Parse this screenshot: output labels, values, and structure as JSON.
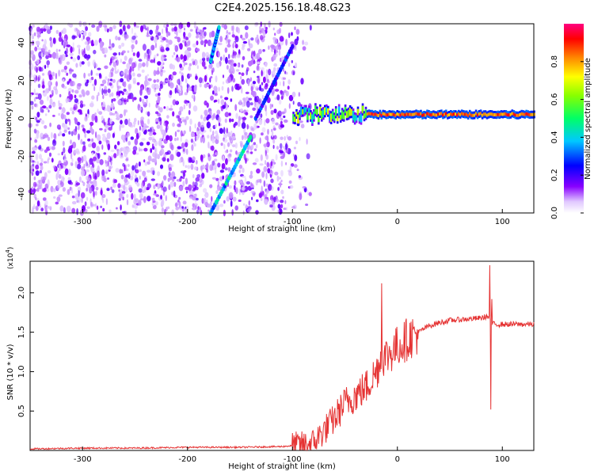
{
  "title": "C2E4.2025.156.18.48.G23",
  "chart_data": [
    {
      "type": "heatmap",
      "title": "C2E4.2025.156.18.48.G23",
      "xlabel": "Height of straight line (km)",
      "ylabel": "Frequency (Hz)",
      "xlim": [
        -350,
        130
      ],
      "ylim": [
        -50,
        50
      ],
      "x_ticks": [
        -300,
        -200,
        -100,
        0,
        100
      ],
      "y_ticks": [
        -40,
        -20,
        0,
        20,
        40
      ],
      "x_tick_labels": [
        "-300",
        "-200",
        "-100",
        "0",
        "100"
      ],
      "y_tick_labels": [
        "-40",
        "-20",
        "0",
        "20",
        "40"
      ],
      "colorbar": {
        "label": "Normalized spectral amplitude",
        "range": [
          0,
          1
        ],
        "ticks": [
          0.0,
          0.2,
          0.4,
          0.6,
          0.8
        ],
        "tick_labels": [
          "0.0",
          "0.2",
          "0.4",
          "0.6",
          "0.8"
        ],
        "colormap": "rainbow (white-purple-blue-cyan-green-yellow-red-magenta)"
      },
      "features": {
        "noise_region_x": [
          -350,
          -100
        ],
        "carrier_tone": {
          "x_start": -100,
          "x_end": 130,
          "freq_hz": 2,
          "amplitude": 0.85
        },
        "chirp_segments": [
          {
            "x": [
              -178,
              -140
            ],
            "y": [
              -50,
              -10
            ],
            "amplitude": 0.45
          },
          {
            "x": [
              -135,
              -100
            ],
            "y": [
              0,
              38
            ],
            "amplitude": 0.3
          },
          {
            "x": [
              -178,
              -170
            ],
            "y": [
              30,
              48
            ],
            "amplitude": 0.4
          }
        ]
      }
    },
    {
      "type": "line",
      "xlabel": "Height of straight line (km)",
      "ylabel": "SNR (10 * v/v)",
      "y_multiplier_label": "(x10",
      "y_multiplier_exp": "4",
      "y_multiplier_close": ")",
      "xlim": [
        -350,
        130
      ],
      "ylim": [
        0,
        2.4
      ],
      "x_ticks": [
        -300,
        -200,
        -100,
        0,
        100
      ],
      "y_ticks": [
        0.5,
        1.0,
        1.5,
        2.0
      ],
      "x_tick_labels": [
        "-300",
        "-200",
        "-100",
        "0",
        "100"
      ],
      "y_tick_labels": [
        "0.5",
        "1.0",
        "1.5",
        "2.0"
      ],
      "series_color": "#e53333",
      "x": [
        -350,
        -300,
        -250,
        -200,
        -150,
        -110,
        -100,
        -90,
        -80,
        -70,
        -60,
        -50,
        -40,
        -30,
        -20,
        -15,
        -10,
        0,
        10,
        20,
        30,
        40,
        50,
        60,
        70,
        80,
        85,
        88,
        90,
        92,
        95,
        100,
        110,
        120,
        130
      ],
      "y": [
        0.02,
        0.03,
        0.03,
        0.04,
        0.04,
        0.05,
        0.06,
        0.07,
        0.1,
        0.25,
        0.4,
        0.6,
        0.7,
        0.8,
        1.0,
        1.2,
        1.2,
        1.32,
        1.42,
        1.5,
        1.58,
        1.62,
        1.65,
        1.66,
        1.67,
        1.68,
        1.7,
        1.68,
        1.62,
        1.6,
        1.6,
        1.6,
        1.6,
        1.6,
        1.6
      ],
      "spikes": [
        {
          "x": -15,
          "y": 2.12
        },
        {
          "x": 88,
          "y": 2.35
        },
        {
          "x": 89,
          "y": 0.52
        },
        {
          "x": 90,
          "y": 1.92
        }
      ]
    }
  ]
}
